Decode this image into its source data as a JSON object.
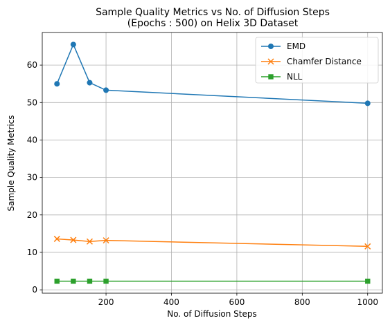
{
  "chart_data": {
    "type": "line",
    "title": "Sample Quality Metrics vs No. of Diffusion Steps",
    "subtitle": "(Epochs : 500) on Helix 3D Dataset",
    "xlabel": "No. of Diffusion Steps",
    "ylabel": "Sample Quality Metrics",
    "x": [
      50,
      100,
      150,
      200,
      1000
    ],
    "xlim": [
      5,
      1045
    ],
    "ylim": [
      -0.9,
      68.7
    ],
    "xticks": [
      200,
      400,
      600,
      800,
      1000
    ],
    "yticks": [
      0,
      10,
      20,
      30,
      40,
      50,
      60
    ],
    "grid": true,
    "legend_position": "top-right",
    "series": [
      {
        "name": "EMD",
        "values": [
          55.0,
          65.5,
          55.3,
          53.3,
          49.8
        ],
        "color": "#1f77b4",
        "marker": "circle"
      },
      {
        "name": "Chamfer Distance",
        "values": [
          13.6,
          13.3,
          12.9,
          13.2,
          11.6
        ],
        "color": "#ff7f0e",
        "marker": "x"
      },
      {
        "name": "NLL",
        "values": [
          2.3,
          2.3,
          2.3,
          2.3,
          2.3
        ],
        "color": "#2ca02c",
        "marker": "square"
      }
    ]
  }
}
